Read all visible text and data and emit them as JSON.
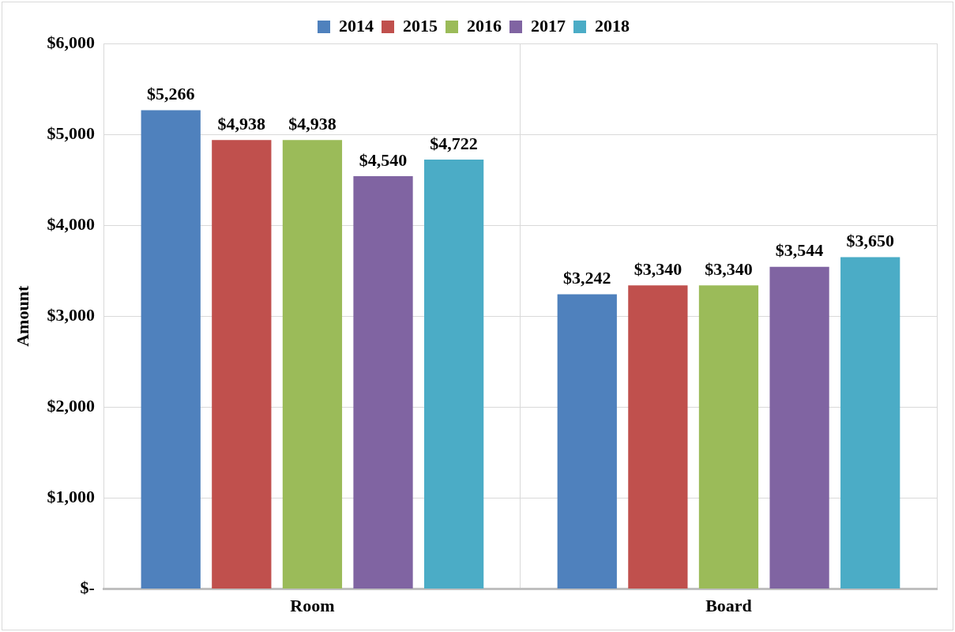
{
  "chart_data": {
    "type": "bar",
    "ylabel": "Amount",
    "categories": [
      "Room",
      "Board"
    ],
    "series": [
      {
        "name": "2014",
        "color": "#4f81bd",
        "values": [
          5266,
          3242
        ],
        "value_labels": [
          "$5,266",
          "$3,242"
        ]
      },
      {
        "name": "2015",
        "color": "#c0504d",
        "values": [
          4938,
          3340
        ],
        "value_labels": [
          "$4,938",
          "$3,340"
        ]
      },
      {
        "name": "2016",
        "color": "#9bbb59",
        "values": [
          4938,
          3340
        ],
        "value_labels": [
          "$4,938",
          "$3,340"
        ]
      },
      {
        "name": "2017",
        "color": "#8064a2",
        "values": [
          4540,
          3544
        ],
        "value_labels": [
          "$4,540",
          "$3,544"
        ]
      },
      {
        "name": "2018",
        "color": "#4bacc6",
        "values": [
          4722,
          3650
        ],
        "value_labels": [
          "$4,722",
          "$3,650"
        ]
      }
    ],
    "ylim": [
      0,
      6000
    ],
    "yticks": [
      {
        "value": 0,
        "label": "$-"
      },
      {
        "value": 1000,
        "label": "$1,000"
      },
      {
        "value": 2000,
        "label": "$2,000"
      },
      {
        "value": 3000,
        "label": "$3,000"
      },
      {
        "value": 4000,
        "label": "$4,000"
      },
      {
        "value": 5000,
        "label": "$5,000"
      },
      {
        "value": 6000,
        "label": "$6,000"
      }
    ],
    "grid": true,
    "legend": "top"
  }
}
